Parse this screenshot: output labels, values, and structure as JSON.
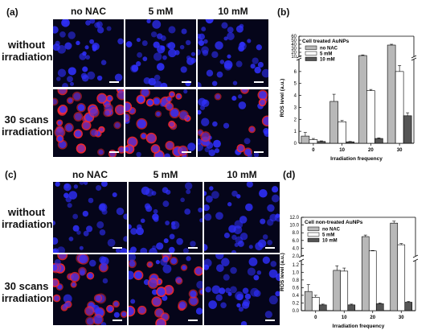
{
  "panels": [
    {
      "id": "a",
      "label": "(a)",
      "columns": [
        "no NAC",
        "5 mM",
        "10 mM"
      ],
      "rows": [
        {
          "label_lines": [
            "without",
            "irradiation"
          ],
          "red": [
            0.15,
            0.1,
            0.05
          ]
        },
        {
          "label_lines": [
            "30 scans",
            "irradiation"
          ],
          "red": [
            1.0,
            0.75,
            0.4
          ]
        }
      ]
    },
    {
      "id": "c",
      "label": "(c)",
      "columns": [
        "no NAC",
        "5 mM",
        "10 mM"
      ],
      "rows": [
        {
          "label_lines": [
            "without",
            "irradiation"
          ],
          "red": [
            0.05,
            0.03,
            0.02
          ]
        },
        {
          "label_lines": [
            "30 scans",
            "irradiation"
          ],
          "red": [
            0.8,
            0.7,
            0.2
          ]
        }
      ]
    }
  ],
  "colors": {
    "no NAC": "#b8b8b8",
    "5 mM": "#ffffff",
    "10 mM": "#555555",
    "nucleus": "#3030ff",
    "ros": "#ff2020"
  },
  "chart_data": [
    {
      "panel_label": "(b)",
      "type": "bar",
      "title": "Cell treated AuNPs",
      "xlabel": "Irradiation frequency",
      "ylabel": "ROS level (a.u.)",
      "categories": [
        "0",
        "10",
        "20",
        "30"
      ],
      "series": [
        {
          "name": "no NAC",
          "values": [
            0.6,
            3.5,
            12,
            38
          ],
          "errors": [
            0.3,
            0.6,
            1.5,
            2
          ]
        },
        {
          "name": "5 mM",
          "values": [
            0.3,
            1.8,
            4.4,
            6.0
          ],
          "errors": [
            0.1,
            0.1,
            0.1,
            0.5
          ]
        },
        {
          "name": "10 mM",
          "values": [
            0.15,
            0.12,
            0.4,
            2.3
          ],
          "errors": [
            0.05,
            0.03,
            0.05,
            0.25
          ]
        }
      ],
      "scale": "broken",
      "lower_ticks": [
        0,
        1,
        2,
        3,
        4,
        5,
        6
      ],
      "upper_ticks": [
        10,
        20,
        30,
        40,
        50,
        60
      ],
      "ylim_lower": [
        0,
        7
      ],
      "ylim_upper": [
        10,
        60
      ],
      "legend_position": "top-left"
    },
    {
      "panel_label": "(d)",
      "type": "bar",
      "title": "Cell non-treated AuNPs",
      "xlabel": "Irradiation frequency",
      "ylabel": "ROS level (a.u.)",
      "categories": [
        "0",
        "10",
        "20",
        "30"
      ],
      "series": [
        {
          "name": "no NAC",
          "values": [
            0.5,
            1.05,
            7.0,
            10.5
          ],
          "errors": [
            0.18,
            0.12,
            0.4,
            0.5
          ]
        },
        {
          "name": "5 mM",
          "values": [
            0.35,
            1.03,
            3.3,
            4.9
          ],
          "errors": [
            0.05,
            0.08,
            0.1,
            0.3
          ]
        },
        {
          "name": "10 mM",
          "values": [
            0.15,
            0.15,
            0.18,
            0.22
          ],
          "errors": [
            0.02,
            0.02,
            0.02,
            0.02
          ]
        }
      ],
      "scale": "broken",
      "lower_ticks": [
        0.0,
        0.2,
        0.4,
        0.6,
        0.8,
        1.0,
        1.2
      ],
      "lower_tick_labels": [
        "0.0",
        "0.2",
        "0.4",
        "0.6",
        "0.8",
        "1.0",
        "1.2"
      ],
      "upper_ticks": [
        2,
        4,
        6,
        8,
        10,
        12
      ],
      "upper_tick_labels": [
        "2.0",
        "4.0",
        "6.0",
        "8.0",
        "10.0",
        "12.0"
      ],
      "ylim_lower": [
        0,
        1.3
      ],
      "ylim_upper": [
        2,
        12
      ],
      "legend_position": "top-left"
    }
  ]
}
